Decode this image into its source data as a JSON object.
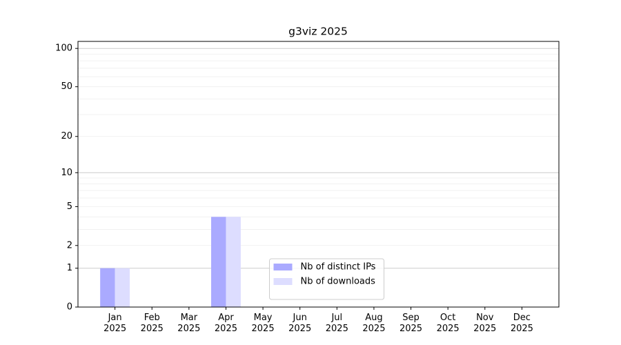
{
  "chart_data": {
    "type": "bar",
    "title": "g3viz 2025",
    "categories": [
      "Jan 2025",
      "Feb 2025",
      "Mar 2025",
      "Apr 2025",
      "May 2025",
      "Jun 2025",
      "Jul 2025",
      "Aug 2025",
      "Sep 2025",
      "Oct 2025",
      "Nov 2025",
      "Dec 2025"
    ],
    "series": [
      {
        "name": "Nb of distinct IPs",
        "color": "#aaaaff",
        "values": [
          1,
          0,
          0,
          4,
          0,
          0,
          0,
          0,
          0,
          0,
          0,
          0
        ]
      },
      {
        "name": "Nb of downloads",
        "color": "#ddddff",
        "values": [
          1,
          0,
          0,
          4,
          0,
          0,
          0,
          0,
          0,
          0,
          0,
          0
        ]
      }
    ],
    "yscale": "log1p",
    "ylim": [
      0,
      113.5
    ],
    "yticks": [
      0,
      1,
      2,
      5,
      10,
      20,
      50,
      100
    ],
    "grid_major": [
      1,
      10,
      100
    ],
    "grid_minor": [
      2,
      3,
      4,
      5,
      6,
      7,
      8,
      9,
      20,
      30,
      40,
      50,
      60,
      70,
      80,
      90
    ],
    "legend": "lower center"
  }
}
